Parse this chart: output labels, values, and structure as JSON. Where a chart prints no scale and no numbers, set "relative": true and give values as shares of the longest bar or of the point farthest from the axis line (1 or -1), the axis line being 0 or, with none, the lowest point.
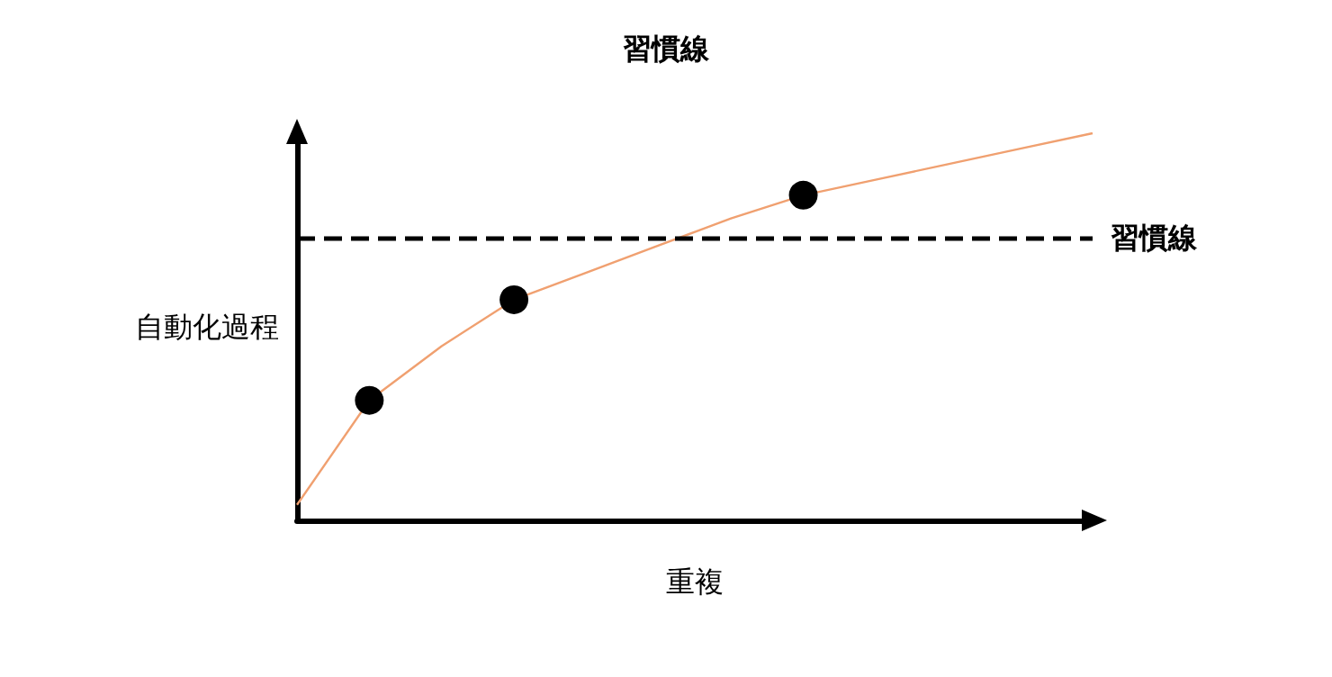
{
  "chart_data": {
    "type": "line",
    "title": "習慣線",
    "xlabel": "重複",
    "ylabel": "自動化過程",
    "relative": true,
    "categories": [
      null,
      null,
      null,
      null,
      null,
      null,
      null,
      null,
      null,
      null,
      null,
      null
    ],
    "series": [
      {
        "color": "#f0a070",
        "marker": "none",
        "line_style": "solid",
        "values": [
          0.04,
          0.31,
          0.45,
          0.57,
          0.64,
          0.71,
          0.78,
          0.84,
          0.88,
          0.92,
          0.96,
          1
        ]
      },
      {
        "color": "#000000",
        "marker": "circle",
        "values": [
          null,
          0.31,
          null,
          0.57,
          null,
          null,
          null,
          0.84,
          null,
          null,
          null,
          null
        ]
      }
    ],
    "ref_lines": [
      {
        "axis": "y",
        "value": 0.73,
        "label": "習慣線",
        "color": "#000000",
        "line_style": "dashed"
      }
    ],
    "grid": false
  }
}
